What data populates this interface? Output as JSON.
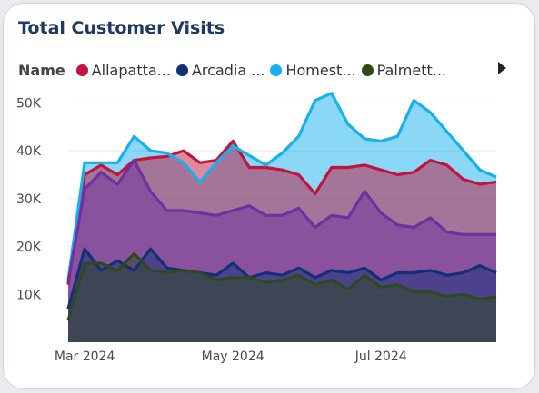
{
  "visual": {
    "title": "Total Customer Visits",
    "legend_title": "Name",
    "legend": [
      {
        "label": "Allapatta...",
        "color": "#c0143c"
      },
      {
        "label": "Arcadia ...",
        "color": "#12307a"
      },
      {
        "label": "Homest...",
        "color": "#16b0ee"
      },
      {
        "label": "Palmett...",
        "color": "#2d4a1e"
      }
    ]
  },
  "chart_data": {
    "type": "area",
    "title": "Total Customer Visits",
    "xlabel": "",
    "ylabel": "",
    "ylim": [
      0,
      55000
    ],
    "yticks": [
      10000,
      20000,
      30000,
      40000,
      50000
    ],
    "ytick_labels": [
      "10K",
      "20K",
      "30K",
      "40K",
      "50K"
    ],
    "xtick_labels": [
      {
        "label": "Mar 2024",
        "index": 1
      },
      {
        "label": "May 2024",
        "index": 10
      },
      {
        "label": "Jul 2024",
        "index": 19
      }
    ],
    "grid": true,
    "legend_position": "top",
    "series": [
      {
        "name": "Allapatta...",
        "color": "#c0143c",
        "values": [
          12000,
          35000,
          37000,
          35000,
          38000,
          38500,
          38800,
          40000,
          37500,
          38000,
          42000,
          36500,
          36500,
          36000,
          35000,
          31000,
          36500,
          36500,
          37000,
          36000,
          35000,
          35500,
          38000,
          37000,
          34000,
          33000,
          33500
        ]
      },
      {
        "name": "Arcadia ...",
        "color": "#12307a",
        "values": [
          7000,
          19500,
          15000,
          17000,
          15000,
          19500,
          15500,
          15000,
          14500,
          14000,
          16500,
          13500,
          14500,
          14000,
          15500,
          13500,
          15000,
          14500,
          15500,
          13000,
          14500,
          14500,
          15000,
          14000,
          14500,
          16000,
          14500
        ]
      },
      {
        "name": "Homest...",
        "color": "#16b0ee",
        "values": [
          13000,
          37500,
          37500,
          37500,
          43000,
          40000,
          39500,
          37500,
          33500,
          37500,
          41000,
          39000,
          37000,
          39500,
          43000,
          50500,
          52000,
          45500,
          42500,
          42000,
          43000,
          50500,
          48000,
          44000,
          40000,
          36000,
          34500
        ]
      },
      {
        "name": "Palmett...",
        "color": "#2d4a1e",
        "values": [
          4500,
          16500,
          16500,
          15000,
          18500,
          15000,
          14500,
          15000,
          14500,
          13000,
          13500,
          13500,
          12500,
          13000,
          14000,
          12000,
          13000,
          11000,
          14000,
          11500,
          12000,
          10500,
          10500,
          9500,
          10000,
          9000,
          9500
        ]
      },
      {
        "name": "",
        "color": "#7030a0",
        "values": [
          12500,
          32000,
          35500,
          33000,
          38000,
          31500,
          27500,
          27500,
          27000,
          26500,
          27500,
          28500,
          26500,
          26500,
          28000,
          24000,
          26500,
          26000,
          31500,
          27000,
          24500,
          24000,
          26000,
          23000,
          22500,
          22500,
          22500
        ]
      }
    ]
  }
}
